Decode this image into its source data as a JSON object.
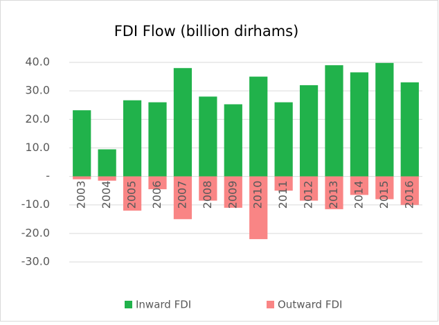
{
  "chart_data": {
    "type": "bar",
    "title": "FDI Flow (billion dirhams)",
    "categories": [
      "2003",
      "2004",
      "2005",
      "2006",
      "2007",
      "2008",
      "2009",
      "2010",
      "2011",
      "2012",
      "2013",
      "2014",
      "2015",
      "2016"
    ],
    "series": [
      {
        "name": "Inward FDI",
        "color": "#21b24b",
        "values": [
          23.2,
          9.5,
          26.7,
          26.0,
          38.0,
          28.0,
          25.3,
          35.0,
          26.0,
          32.0,
          39.0,
          36.5,
          39.8,
          33.0
        ]
      },
      {
        "name": "Outward FDI",
        "color": "#f98585",
        "values": [
          -1.0,
          -1.5,
          -12.0,
          -4.5,
          -15.0,
          -8.5,
          -11.0,
          -22.0,
          -5.0,
          -8.5,
          -11.5,
          -6.5,
          -8.0,
          -10.0
        ]
      }
    ],
    "ylim": [
      -30,
      40
    ],
    "yticks": [
      {
        "value": 40,
        "label": "40.0"
      },
      {
        "value": 30,
        "label": "30.0"
      },
      {
        "value": 20,
        "label": "20.0"
      },
      {
        "value": 10,
        "label": "10.0"
      },
      {
        "value": 0,
        "label": "-"
      },
      {
        "value": -10,
        "label": "-10.0"
      },
      {
        "value": -20,
        "label": "-20.0"
      },
      {
        "value": -30,
        "label": "-30.0"
      }
    ],
    "grid": true,
    "legend": "bottom"
  }
}
